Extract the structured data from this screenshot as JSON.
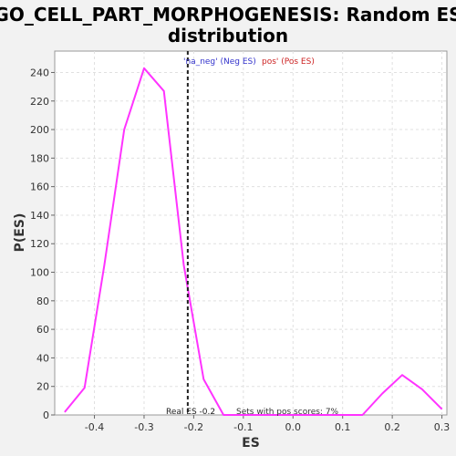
{
  "chart_data": {
    "type": "line",
    "title": "GO_CELL_PART_MORPHOGENESIS: Random ES distribution",
    "title_lines": [
      "GO_CELL_PART_MORPHOGENESIS: Random ES",
      "distribution"
    ],
    "xlabel": "ES",
    "ylabel": "P(ES)",
    "xlim": [
      -0.48,
      0.31
    ],
    "ylim": [
      0,
      255
    ],
    "xticks": [
      -0.4,
      -0.3,
      -0.2,
      -0.1,
      0.0,
      0.1,
      0.2,
      0.3
    ],
    "xtick_labels": [
      "-0.4",
      "-0.3",
      "-0.2",
      "-0.1",
      "0.0",
      "0.1",
      "0.2",
      "0.3"
    ],
    "yticks": [
      0,
      20,
      40,
      60,
      80,
      100,
      120,
      140,
      160,
      180,
      200,
      220,
      240
    ],
    "grid": true,
    "series": [
      {
        "color": "#ff33ff",
        "x": [
          -0.46,
          -0.42,
          -0.38,
          -0.34,
          -0.3,
          -0.26,
          -0.22,
          -0.18,
          -0.14,
          -0.1,
          -0.06,
          -0.02,
          0.02,
          0.06,
          0.1,
          0.14,
          0.18,
          0.22,
          0.26,
          0.3
        ],
        "y": [
          2,
          19,
          105,
          200,
          243,
          227,
          105,
          25,
          0,
          0,
          0,
          0,
          0,
          0,
          0,
          0,
          15,
          28,
          18,
          4
        ]
      }
    ],
    "real_es": -0.2,
    "real_es_line_x": -0.212,
    "annotations": {
      "neg_label": "'na_neg' (Neg ES)",
      "pos_label": "pos' (Pos ES)",
      "real_es_label": "Real ES -0.2",
      "sets_label": "Sets with pos scores: 7%"
    },
    "colors": {
      "line": "#ff33ff",
      "neg": "#3333cc",
      "pos": "#cc2222",
      "real_es_line": "#222222"
    }
  }
}
